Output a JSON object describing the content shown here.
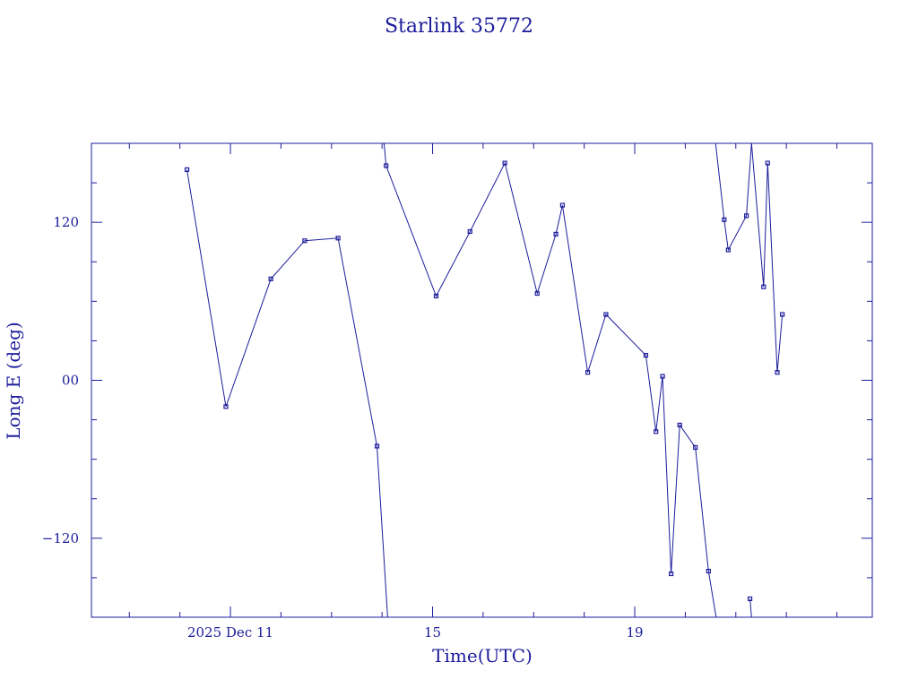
{
  "chart_data": {
    "type": "line",
    "title": "Starlink 35772",
    "xlabel": "Time(UTC)",
    "ylabel": "Long E (deg)",
    "x_unit": "days, December 2025",
    "xlim": [
      7.25,
      22.7
    ],
    "ylim": [
      -180,
      180
    ],
    "x_ticks": [
      {
        "value": 10.0,
        "label": "2025 Dec 11"
      },
      {
        "value": 14.0,
        "label": "15"
      },
      {
        "value": 18.0,
        "label": "19"
      }
    ],
    "x_minor_ticks": [
      8.0,
      9.0,
      10.0,
      11.0,
      12.0,
      13.0,
      14.0,
      15.0,
      16.0,
      17.0,
      18.0,
      19.0,
      20.0,
      21.0,
      22.0
    ],
    "y_ticks": [
      {
        "value": 120,
        "label": "120"
      },
      {
        "value": 0,
        "label": "00"
      },
      {
        "value": -120,
        "label": "−120"
      }
    ],
    "y_minor_ticks": [
      -150,
      -120,
      -90,
      -60,
      -30,
      0,
      30,
      60,
      90,
      120,
      150
    ],
    "grid": false,
    "color": "#1c1c9c",
    "segments": [
      [
        [
          9.14,
          160
        ],
        [
          9.91,
          -20
        ],
        [
          10.8,
          77
        ],
        [
          11.47,
          106
        ],
        [
          12.13,
          108
        ],
        [
          12.9,
          -50
        ],
        [
          13.11,
          -180
        ]
      ],
      [
        [
          13.04,
          180
        ],
        [
          13.08,
          163
        ],
        [
          14.07,
          64
        ],
        [
          14.74,
          113
        ],
        [
          15.43,
          165
        ],
        [
          16.07,
          66
        ],
        [
          16.44,
          111
        ],
        [
          16.57,
          133
        ],
        [
          17.07,
          6
        ],
        [
          17.43,
          50
        ],
        [
          18.22,
          19
        ],
        [
          18.42,
          -39
        ],
        [
          18.55,
          3
        ],
        [
          18.72,
          -147
        ],
        [
          18.89,
          -34
        ],
        [
          19.2,
          -51
        ],
        [
          19.46,
          -145
        ],
        [
          19.61,
          -180
        ]
      ],
      [
        [
          19.6,
          180
        ],
        [
          19.77,
          122
        ],
        [
          19.85,
          99
        ],
        [
          20.21,
          125
        ],
        [
          20.31,
          180
        ]
      ],
      [
        [
          20.28,
          -166
        ],
        [
          20.31,
          -180
        ]
      ],
      [
        [
          20.31,
          180
        ],
        [
          20.55,
          71
        ],
        [
          20.63,
          165
        ],
        [
          20.82,
          6
        ],
        [
          20.92,
          50
        ]
      ]
    ]
  }
}
